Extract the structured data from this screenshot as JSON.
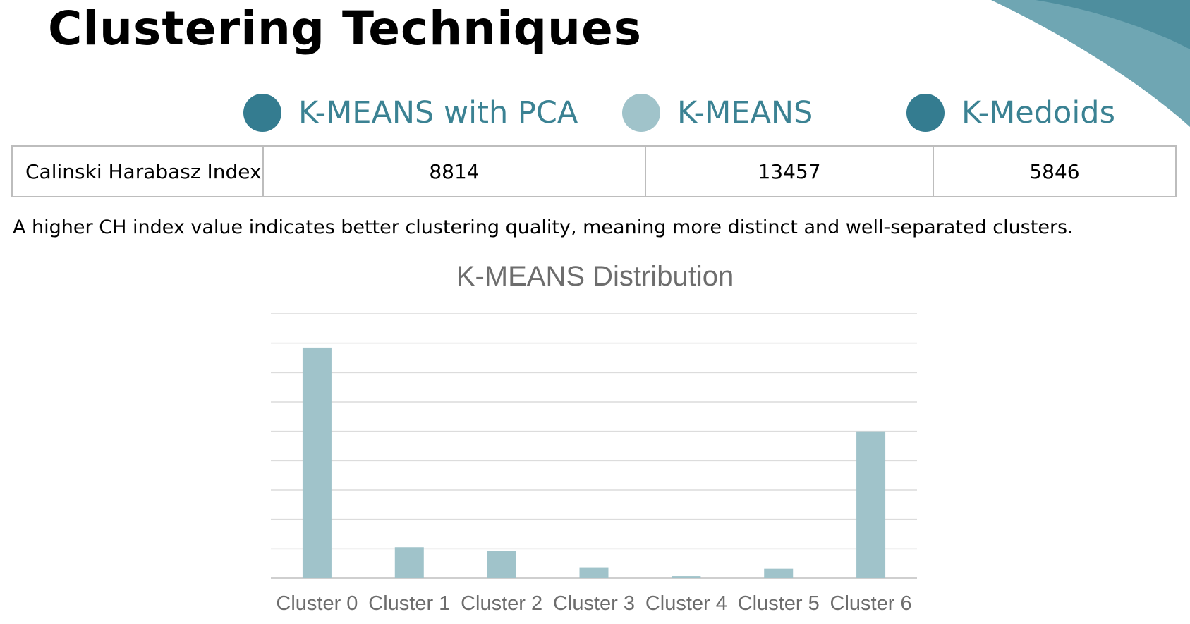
{
  "title": "Clustering Techniques",
  "colors": {
    "dark_teal": "#347c90",
    "light_teal": "#a0c3ca",
    "label_teal": "#3b8293",
    "grid": "#dcdcdc",
    "axis_text": "#6d6d6d"
  },
  "legend": [
    {
      "label": "K-MEANS with PCA",
      "color": "#347c90"
    },
    {
      "label": "K-MEANS",
      "color": "#a0c3ca"
    },
    {
      "label": "K-Medoids",
      "color": "#347c90"
    }
  ],
  "metrics_table": {
    "row_label": "Calinski Harabasz Index",
    "values": [
      "8814",
      "13457",
      "5846"
    ]
  },
  "note": "A higher CH index value indicates better clustering quality, meaning more distinct and well-separated clusters.",
  "chart_data": {
    "type": "bar",
    "title": "K-MEANS Distribution",
    "categories": [
      "Cluster 0",
      "Cluster 1",
      "Cluster 2",
      "Cluster 3",
      "Cluster 4",
      "Cluster 5",
      "Cluster 6"
    ],
    "values": [
      7.85,
      1.05,
      0.93,
      0.37,
      0.07,
      0.32,
      5.0
    ],
    "ylim": [
      0,
      9
    ],
    "grid": true,
    "bar_color": "#a0c3ca",
    "xlabel": "",
    "ylabel": ""
  }
}
